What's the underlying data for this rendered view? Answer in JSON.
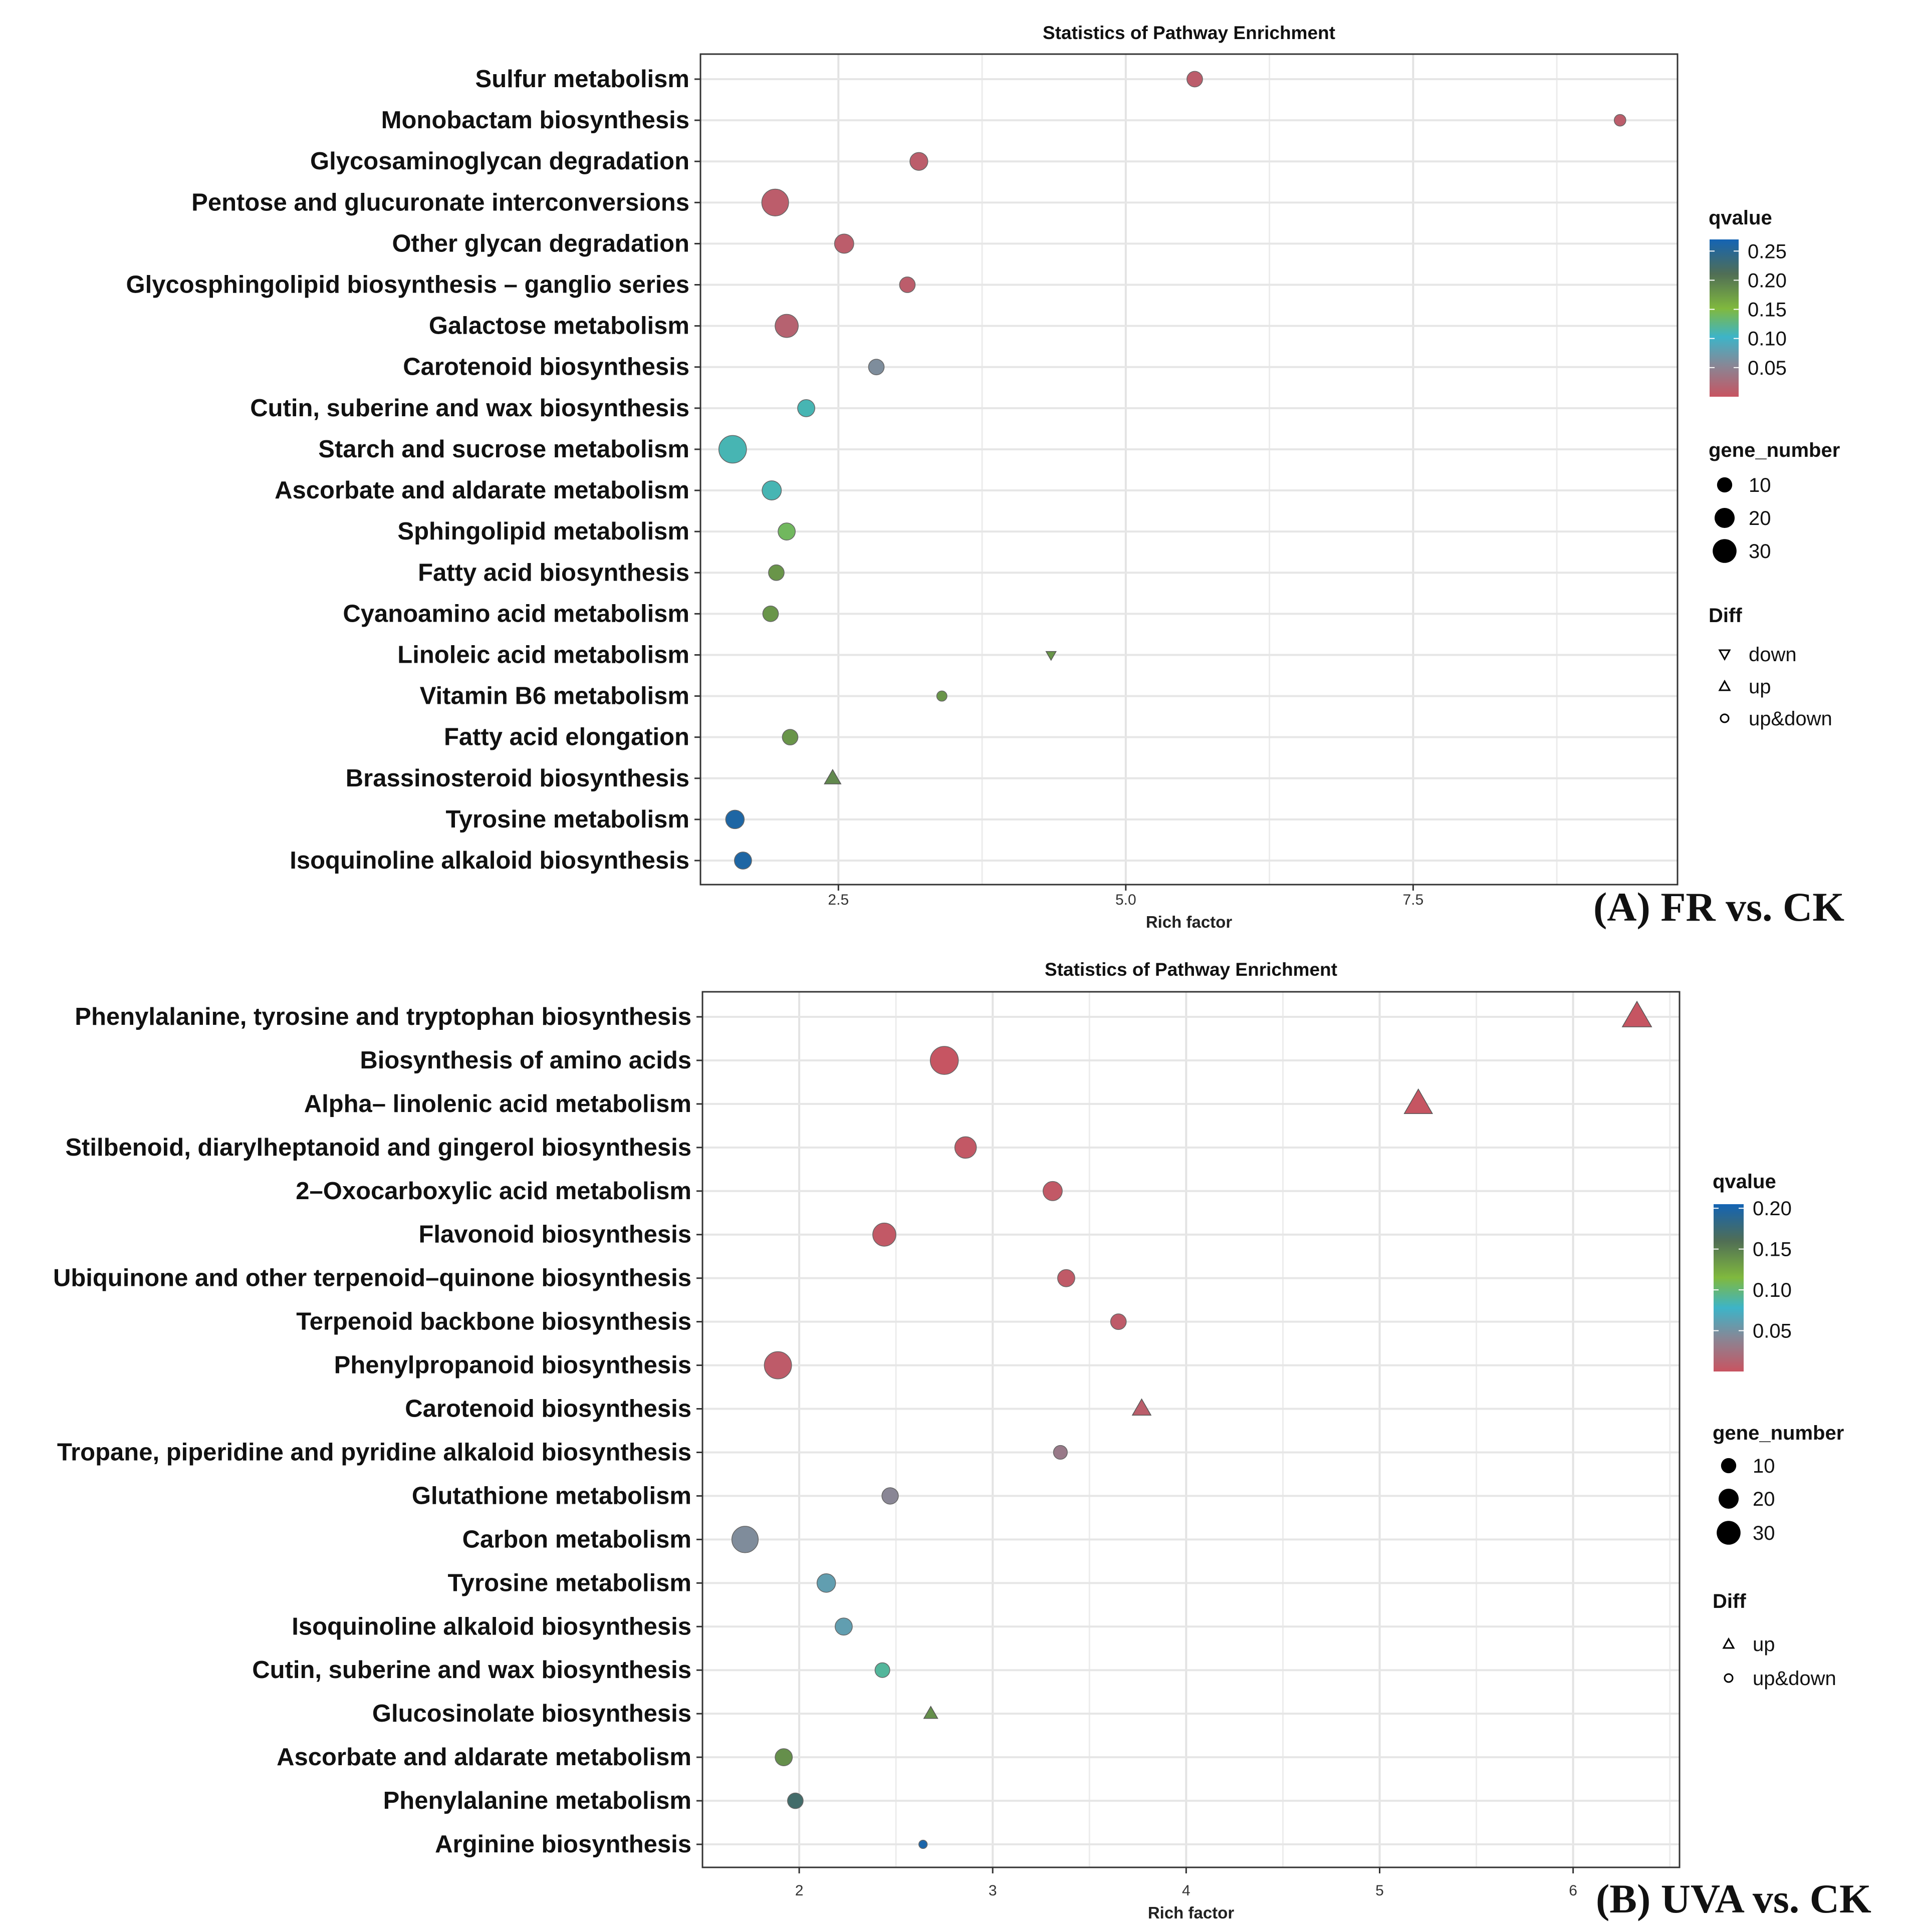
{
  "chart_data": [
    {
      "type": "scatter",
      "panel": "A",
      "panel_label": "(A) FR vs. CK",
      "title": "Statistics of Pathway Enrichment",
      "xlabel": "Rich factor",
      "ylabel": "",
      "xlim": [
        1.3,
        9.8
      ],
      "xticks": [
        2.5,
        5.0,
        7.5
      ],
      "xtick_labels": [
        "2.5",
        "5.0",
        "7.5"
      ],
      "qvalue_range": [
        0,
        0.27
      ],
      "legend": {
        "qvalue_title": "qvalue",
        "qvalue_ticks": [
          0.25,
          0.2,
          0.15,
          0.1,
          0.05
        ],
        "qvalue_tick_labels": [
          "0.25",
          "0.20",
          "0.15",
          "0.10",
          "0.05"
        ],
        "size_title": "gene_number",
        "size_values": [
          10,
          20,
          30
        ],
        "size_labels": [
          "10",
          "20",
          "30"
        ],
        "diff_title": "Diff",
        "diff_items": [
          {
            "shape": "down",
            "label": "down"
          },
          {
            "shape": "up",
            "label": "up"
          },
          {
            "shape": "updown",
            "label": "up&down"
          }
        ]
      },
      "points": [
        {
          "pathway": "Sulfur metabolism",
          "rich_factor": 5.6,
          "qvalue": 0.01,
          "gene_number": 7,
          "diff": "updown"
        },
        {
          "pathway": "Monobactam biosynthesis",
          "rich_factor": 9.3,
          "qvalue": 0.01,
          "gene_number": 3,
          "diff": "updown"
        },
        {
          "pathway": "Glycosaminoglycan degradation",
          "rich_factor": 3.2,
          "qvalue": 0.01,
          "gene_number": 10,
          "diff": "updown"
        },
        {
          "pathway": "Pentose and glucuronate interconversions",
          "rich_factor": 1.95,
          "qvalue": 0.01,
          "gene_number": 27,
          "diff": "updown"
        },
        {
          "pathway": "Other glycan degradation",
          "rich_factor": 2.55,
          "qvalue": 0.01,
          "gene_number": 12,
          "diff": "updown"
        },
        {
          "pathway": "Glycosphingolipid biosynthesis – ganglio series",
          "rich_factor": 3.1,
          "qvalue": 0.01,
          "gene_number": 7,
          "diff": "updown"
        },
        {
          "pathway": "Galactose metabolism",
          "rich_factor": 2.05,
          "qvalue": 0.015,
          "gene_number": 19,
          "diff": "updown"
        },
        {
          "pathway": "Carotenoid biosynthesis",
          "rich_factor": 2.83,
          "qvalue": 0.06,
          "gene_number": 7,
          "diff": "updown"
        },
        {
          "pathway": "Cutin, suberine and wax biosynthesis",
          "rich_factor": 2.22,
          "qvalue": 0.11,
          "gene_number": 9,
          "diff": "updown"
        },
        {
          "pathway": "Starch and sucrose metabolism",
          "rich_factor": 1.58,
          "qvalue": 0.11,
          "gene_number": 29,
          "diff": "updown"
        },
        {
          "pathway": "Ascorbate and aldarate metabolism",
          "rich_factor": 1.92,
          "qvalue": 0.11,
          "gene_number": 12,
          "diff": "updown"
        },
        {
          "pathway": "Sphingolipid metabolism",
          "rich_factor": 2.05,
          "qvalue": 0.14,
          "gene_number": 9,
          "diff": "updown"
        },
        {
          "pathway": "Fatty acid biosynthesis",
          "rich_factor": 1.96,
          "qvalue": 0.18,
          "gene_number": 7,
          "diff": "updown"
        },
        {
          "pathway": "Cyanoamino acid metabolism",
          "rich_factor": 1.91,
          "qvalue": 0.18,
          "gene_number": 7,
          "diff": "updown"
        },
        {
          "pathway": "Linoleic acid metabolism",
          "rich_factor": 4.35,
          "qvalue": 0.18,
          "gene_number": 1,
          "diff": "down"
        },
        {
          "pathway": "Vitamin B6 metabolism",
          "rich_factor": 3.4,
          "qvalue": 0.18,
          "gene_number": 2,
          "diff": "updown"
        },
        {
          "pathway": "Fatty acid elongation",
          "rich_factor": 2.08,
          "qvalue": 0.18,
          "gene_number": 7,
          "diff": "updown"
        },
        {
          "pathway": "Brassinosteroid biosynthesis",
          "rich_factor": 2.45,
          "qvalue": 0.19,
          "gene_number": 5,
          "diff": "up"
        },
        {
          "pathway": "Tyrosine metabolism",
          "rich_factor": 1.6,
          "qvalue": 0.26,
          "gene_number": 11,
          "diff": "updown"
        },
        {
          "pathway": "Isoquinoline alkaloid biosynthesis",
          "rich_factor": 1.67,
          "qvalue": 0.26,
          "gene_number": 9,
          "diff": "updown"
        }
      ]
    },
    {
      "type": "scatter",
      "panel": "B",
      "panel_label": "(B) UVA vs. CK",
      "title": "Statistics of Pathway Enrichment",
      "xlabel": "Rich factor",
      "ylabel": "",
      "xlim": [
        1.5,
        6.55
      ],
      "xticks": [
        2,
        3,
        4,
        5,
        6
      ],
      "xtick_labels": [
        "2",
        "3",
        "4",
        "5",
        "6"
      ],
      "qvalue_range": [
        0,
        0.205
      ],
      "legend": {
        "qvalue_title": "qvalue",
        "qvalue_ticks": [
          0.2,
          0.15,
          0.1,
          0.05
        ],
        "qvalue_tick_labels": [
          "0.20",
          "0.15",
          "0.10",
          "0.05"
        ],
        "size_title": "gene_number",
        "size_values": [
          10,
          20,
          30
        ],
        "size_labels": [
          "10",
          "20",
          "30"
        ],
        "diff_title": "Diff",
        "diff_items": [
          {
            "shape": "up",
            "label": "up"
          },
          {
            "shape": "updown",
            "label": "up&down"
          }
        ]
      },
      "points": [
        {
          "pathway": "Phenylalanine, tyrosine and tryptophan biosynthesis",
          "rich_factor": 6.33,
          "qvalue": 0.001,
          "gene_number": 22,
          "diff": "up"
        },
        {
          "pathway": "Biosynthesis of amino acids",
          "rich_factor": 2.75,
          "qvalue": 0.001,
          "gene_number": 30,
          "diff": "updown"
        },
        {
          "pathway": "Alpha– linolenic acid metabolism",
          "rich_factor": 5.2,
          "qvalue": 0.001,
          "gene_number": 20,
          "diff": "up"
        },
        {
          "pathway": "Stilbenoid, diarylheptanoid and gingerol biosynthesis",
          "rich_factor": 2.86,
          "qvalue": 0.003,
          "gene_number": 16,
          "diff": "updown"
        },
        {
          "pathway": "2–Oxocarboxylic acid metabolism",
          "rich_factor": 3.31,
          "qvalue": 0.004,
          "gene_number": 12,
          "diff": "updown"
        },
        {
          "pathway": "Flavonoid biosynthesis",
          "rich_factor": 2.44,
          "qvalue": 0.004,
          "gene_number": 19,
          "diff": "updown"
        },
        {
          "pathway": "Ubiquinone and other terpenoid–quinone biosynthesis",
          "rich_factor": 3.38,
          "qvalue": 0.005,
          "gene_number": 9,
          "diff": "updown"
        },
        {
          "pathway": "Terpenoid backbone biosynthesis",
          "rich_factor": 3.65,
          "qvalue": 0.006,
          "gene_number": 7,
          "diff": "updown"
        },
        {
          "pathway": "Phenylpropanoid biosynthesis",
          "rich_factor": 1.89,
          "qvalue": 0.006,
          "gene_number": 28,
          "diff": "updown"
        },
        {
          "pathway": "Carotenoid biosynthesis",
          "rich_factor": 3.77,
          "qvalue": 0.008,
          "gene_number": 7,
          "diff": "up"
        },
        {
          "pathway": "Tropane, piperidine and pyridine alkaloid biosynthesis",
          "rich_factor": 3.35,
          "qvalue": 0.03,
          "gene_number": 5,
          "diff": "updown"
        },
        {
          "pathway": "Glutathione metabolism",
          "rich_factor": 2.47,
          "qvalue": 0.04,
          "gene_number": 8,
          "diff": "updown"
        },
        {
          "pathway": "Carbon metabolism",
          "rich_factor": 1.72,
          "qvalue": 0.045,
          "gene_number": 26,
          "diff": "updown"
        },
        {
          "pathway": "Tyrosine metabolism",
          "rich_factor": 2.14,
          "qvalue": 0.06,
          "gene_number": 11,
          "diff": "updown"
        },
        {
          "pathway": "Isoquinoline alkaloid biosynthesis",
          "rich_factor": 2.23,
          "qvalue": 0.06,
          "gene_number": 9,
          "diff": "updown"
        },
        {
          "pathway": "Cutin, suberine and wax biosynthesis",
          "rich_factor": 2.43,
          "qvalue": 0.09,
          "gene_number": 6,
          "diff": "updown"
        },
        {
          "pathway": "Glucosinolate biosynthesis",
          "rich_factor": 2.68,
          "qvalue": 0.14,
          "gene_number": 3,
          "diff": "up"
        },
        {
          "pathway": "Ascorbate and aldarate metabolism",
          "rich_factor": 1.92,
          "qvalue": 0.14,
          "gene_number": 9,
          "diff": "updown"
        },
        {
          "pathway": "Phenylalanine metabolism",
          "rich_factor": 1.98,
          "qvalue": 0.17,
          "gene_number": 7,
          "diff": "updown"
        },
        {
          "pathway": "Arginine biosynthesis",
          "rich_factor": 2.64,
          "qvalue": 0.2,
          "gene_number": 1,
          "diff": "updown"
        }
      ]
    }
  ]
}
